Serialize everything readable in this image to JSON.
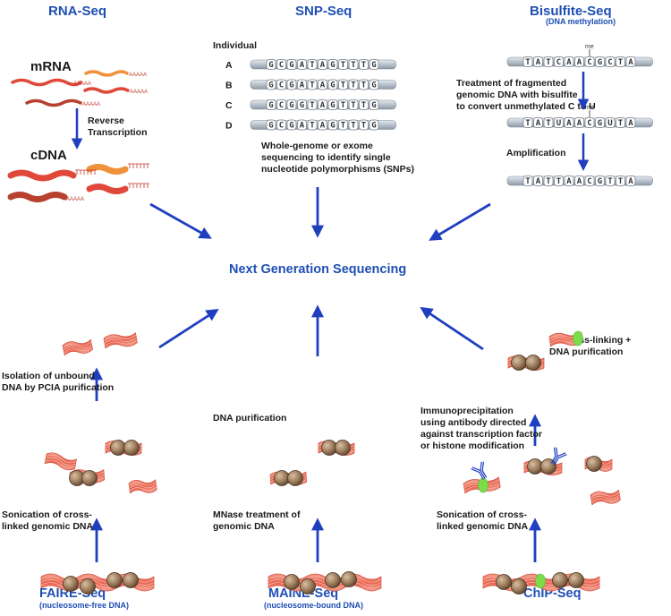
{
  "methods": {
    "rna_seq": {
      "title": "RNA-Seq"
    },
    "snp_seq": {
      "title": "SNP-Seq"
    },
    "bisulfite_seq": {
      "title": "Bisulfite-Seq",
      "subtitle": "(DNA methylation)"
    },
    "faire_seq": {
      "title": "FAIRE-Seq",
      "subtitle": "(nucleosome-free DNA)"
    },
    "maine_seq": {
      "title": "MAINE-Seq",
      "subtitle": "(nucleosome-bound DNA)"
    },
    "chip_seq": {
      "title": "ChIP-Seq"
    }
  },
  "center": {
    "title": "Next Generation Sequencing"
  },
  "rna": {
    "mrna_label": "mRNA",
    "cdna_label": "cDNA",
    "polya": "AAAAA",
    "step_line1": "Reverse",
    "step_line2": "Transcription"
  },
  "snp": {
    "individual_label": "Individual",
    "rows": [
      {
        "id": "A",
        "seq": [
          "G",
          "C",
          "G",
          "A",
          "T",
          "A",
          "G",
          "T",
          "T",
          "T",
          "G"
        ],
        "highlight": -1
      },
      {
        "id": "B",
        "seq": [
          "G",
          "C",
          "G",
          "A",
          "T",
          "A",
          "G",
          "T",
          "T",
          "T",
          "G"
        ],
        "highlight": -1
      },
      {
        "id": "C",
        "seq": [
          "G",
          "C",
          "G",
          "G",
          "T",
          "A",
          "G",
          "T",
          "T",
          "T",
          "G"
        ],
        "highlight": 3
      },
      {
        "id": "D",
        "seq": [
          "G",
          "C",
          "G",
          "A",
          "T",
          "A",
          "G",
          "T",
          "T",
          "T",
          "G"
        ],
        "highlight": -1
      }
    ],
    "desc_line1": "Whole-genome or exome",
    "desc_line2": "sequencing to identify single",
    "desc_line3": "nucleotide polymorphisms (SNPs)"
  },
  "bisulfite": {
    "me_label": "me",
    "seq1": [
      "T",
      "A",
      "T",
      "C",
      "A",
      "A",
      "C",
      "G",
      "C",
      "T",
      "A"
    ],
    "seq2": [
      "T",
      "A",
      "T",
      "U",
      "A",
      "A",
      "C",
      "G",
      "U",
      "T",
      "A"
    ],
    "seq3": [
      "T",
      "A",
      "T",
      "T",
      "A",
      "A",
      "C",
      "G",
      "T",
      "T",
      "A"
    ],
    "seq2_highlight": [
      3,
      8
    ],
    "seq3_highlight": [
      3,
      8
    ],
    "step1_line1": "Treatment of fragmented",
    "step1_line2": "genomic DNA with bisulfite",
    "step1_line3": "to convert unmethylated C to U",
    "step2": "Amplification"
  },
  "faire": {
    "step1_line1": "Sonication of cross-",
    "step1_line2": "linked genomic DNA",
    "step2_line1": "Isolation of unbound",
    "step2_line2": "DNA by PCIA purification"
  },
  "maine": {
    "step1_line1": "MNase treatment of",
    "step1_line2": "genomic DNA",
    "step2": "DNA purification"
  },
  "chip": {
    "step1_line1": "Sonication of cross-",
    "step1_line2": "linked genomic DNA",
    "step2_line1": "Immunoprecipitation",
    "step2_line2": "using antibody directed",
    "step2_line3": "against transcription factor",
    "step2_line4": "or histone modification",
    "step3_line1": "De-cross-linking +",
    "step3_line2": "DNA purification"
  },
  "colors": {
    "title_blue": "#1f4fb5",
    "arrow_blue": "#1f3fbf",
    "dna_red": "#e8604a",
    "dna_light": "#f6b3a3",
    "nucleosome": "#9a7a5a",
    "chip_green": "#7ddc4a",
    "mutation_red": "#d9363e",
    "strand_gray": "#c6ced6"
  }
}
